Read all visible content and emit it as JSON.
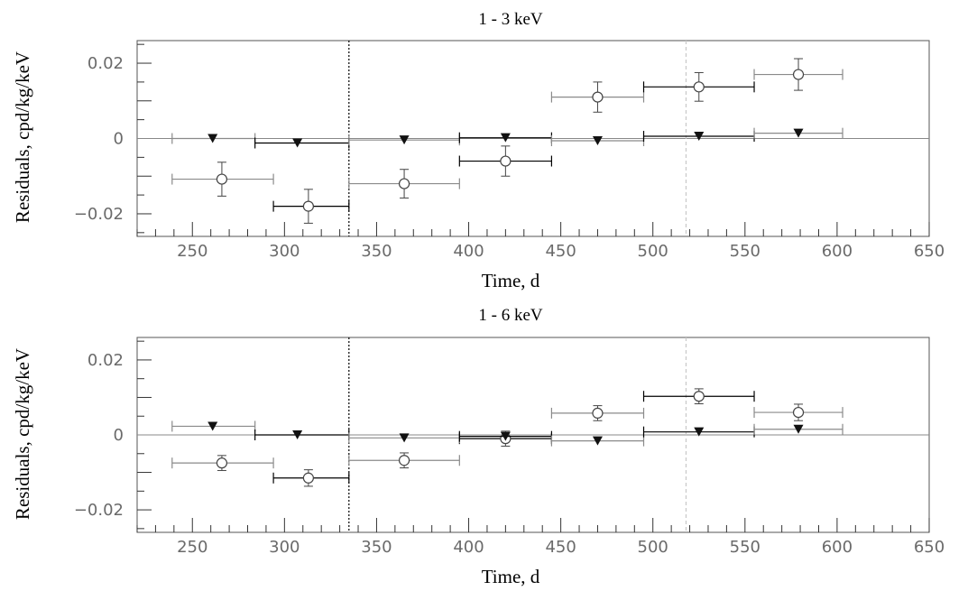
{
  "chart_data": [
    {
      "type": "scatter",
      "title": "1 - 3 keV",
      "xlabel": "Time, d",
      "ylabel": "Residuals, cpd/kg/keV",
      "xlim": [
        220,
        650
      ],
      "ylim": [
        -0.026,
        0.026
      ],
      "x_ticks": [
        "250",
        "300",
        "350",
        "400",
        "450",
        "500",
        "550",
        "600",
        "650"
      ],
      "y_ticks": [
        "0.02",
        "0",
        "−0.02"
      ],
      "reference_lines": {
        "vertical": [
          335,
          518
        ],
        "horizontal": [
          0
        ]
      },
      "series": [
        {
          "marker": "open-circle",
          "points": [
            {
              "x": 266,
              "xmin": 239,
              "xmax": 294,
              "y": -0.0108,
              "yerr": 0.0045
            },
            {
              "x": 313,
              "xmin": 294,
              "xmax": 335,
              "y": -0.018,
              "yerr": 0.0045
            },
            {
              "x": 365,
              "xmin": 335,
              "xmax": 395,
              "y": -0.012,
              "yerr": 0.0038
            },
            {
              "x": 420,
              "xmin": 395,
              "xmax": 445,
              "y": -0.006,
              "yerr": 0.004
            },
            {
              "x": 470,
              "xmin": 445,
              "xmax": 495,
              "y": 0.011,
              "yerr": 0.004
            },
            {
              "x": 525,
              "xmin": 495,
              "xmax": 555,
              "y": 0.0137,
              "yerr": 0.0038
            },
            {
              "x": 579,
              "xmin": 555,
              "xmax": 603,
              "y": 0.017,
              "yerr": 0.0042
            }
          ]
        },
        {
          "marker": "filled-triangle-down",
          "points": [
            {
              "x": 261,
              "xmin": 239,
              "xmax": 284,
              "y": 0.0
            },
            {
              "x": 307,
              "xmin": 284,
              "xmax": 335,
              "y": -0.0012
            },
            {
              "x": 365,
              "xmin": 335,
              "xmax": 395,
              "y": -0.0004
            },
            {
              "x": 420,
              "xmin": 395,
              "xmax": 445,
              "y": 0.0002
            },
            {
              "x": 470,
              "xmin": 445,
              "xmax": 495,
              "y": -0.0006
            },
            {
              "x": 525,
              "xmin": 495,
              "xmax": 555,
              "y": 0.0006
            },
            {
              "x": 579,
              "xmin": 555,
              "xmax": 603,
              "y": 0.0014
            }
          ]
        }
      ]
    },
    {
      "type": "scatter",
      "title": "1 - 6 keV",
      "xlabel": "Time, d",
      "ylabel": "Residuals, cpd/kg/keV",
      "xlim": [
        220,
        650
      ],
      "ylim": [
        -0.026,
        0.026
      ],
      "x_ticks": [
        "250",
        "300",
        "350",
        "400",
        "450",
        "500",
        "550",
        "600",
        "650"
      ],
      "y_ticks": [
        "0.02",
        "0",
        "−0.02"
      ],
      "reference_lines": {
        "vertical": [
          335,
          518
        ],
        "horizontal": [
          0
        ]
      },
      "series": [
        {
          "marker": "open-circle",
          "points": [
            {
              "x": 266,
              "xmin": 239,
              "xmax": 294,
              "y": -0.0075,
              "yerr": 0.002
            },
            {
              "x": 313,
              "xmin": 294,
              "xmax": 335,
              "y": -0.0115,
              "yerr": 0.0022
            },
            {
              "x": 365,
              "xmin": 335,
              "xmax": 395,
              "y": -0.0068,
              "yerr": 0.002
            },
            {
              "x": 420,
              "xmin": 395,
              "xmax": 445,
              "y": -0.001,
              "yerr": 0.002
            },
            {
              "x": 470,
              "xmin": 445,
              "xmax": 495,
              "y": 0.0058,
              "yerr": 0.002
            },
            {
              "x": 525,
              "xmin": 495,
              "xmax": 555,
              "y": 0.0103,
              "yerr": 0.002
            },
            {
              "x": 579,
              "xmin": 555,
              "xmax": 603,
              "y": 0.006,
              "yerr": 0.0022
            }
          ]
        },
        {
          "marker": "filled-triangle-down",
          "points": [
            {
              "x": 261,
              "xmin": 239,
              "xmax": 284,
              "y": 0.0023
            },
            {
              "x": 307,
              "xmin": 284,
              "xmax": 335,
              "y": 0.0
            },
            {
              "x": 365,
              "xmin": 335,
              "xmax": 395,
              "y": -0.0008
            },
            {
              "x": 420,
              "xmin": 395,
              "xmax": 445,
              "y": -0.0004
            },
            {
              "x": 470,
              "xmin": 445,
              "xmax": 495,
              "y": -0.0016
            },
            {
              "x": 525,
              "xmin": 495,
              "xmax": 555,
              "y": 0.0008
            },
            {
              "x": 579,
              "xmin": 555,
              "xmax": 603,
              "y": 0.0015
            }
          ]
        }
      ]
    }
  ]
}
